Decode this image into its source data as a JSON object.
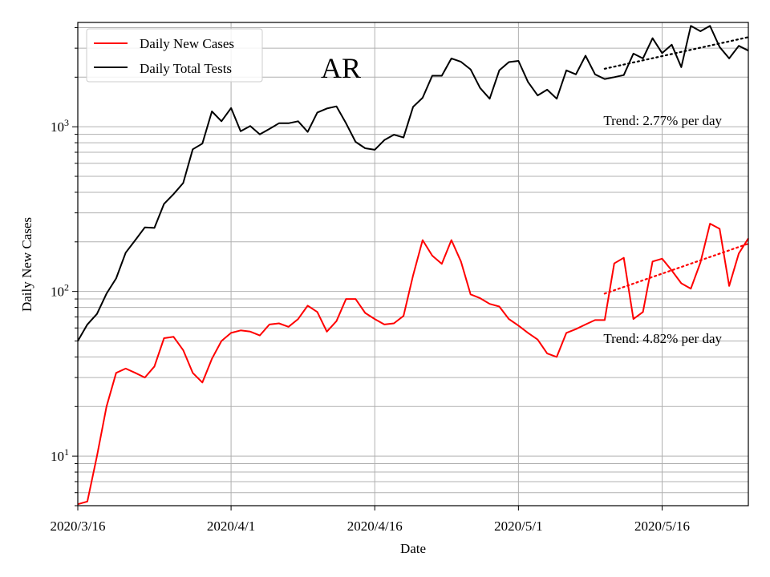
{
  "chart_data": {
    "type": "line",
    "state_label": "AR",
    "xlabel": "Date",
    "ylabel": "Daily New Cases",
    "yscale": "log",
    "ylim": [
      5,
      4300
    ],
    "xlim": [
      "2020-03-16",
      "2020-05-25"
    ],
    "grid": "both (major and minor on y)",
    "legend_position": "top-left",
    "x_ticks": [
      {
        "date": "2020-03-16",
        "label": "2020/3/16"
      },
      {
        "date": "2020-04-01",
        "label": "2020/4/1"
      },
      {
        "date": "2020-04-16",
        "label": "2020/4/16"
      },
      {
        "date": "2020-05-01",
        "label": "2020/5/1"
      },
      {
        "date": "2020-05-16",
        "label": "2020/5/16"
      }
    ],
    "y_ticks": [
      {
        "value": 10,
        "base": "10",
        "exp": "1"
      },
      {
        "value": 100,
        "base": "10",
        "exp": "2"
      },
      {
        "value": 1000,
        "base": "10",
        "exp": "3"
      }
    ],
    "start_date": "2020-03-16",
    "series": [
      {
        "name": "Daily New Cases",
        "color": "#ff0000",
        "values": [
          5.1,
          5.3,
          10,
          20,
          32,
          34,
          32,
          30,
          35,
          52,
          53,
          44,
          32,
          28,
          39,
          50,
          56,
          58,
          57,
          54,
          63,
          64,
          61,
          68,
          82,
          75,
          57,
          66,
          90,
          90,
          74,
          68,
          63,
          64,
          71,
          125,
          205,
          165,
          147,
          205,
          152,
          96,
          91,
          84,
          81,
          68,
          62,
          56,
          51,
          42,
          40,
          56,
          59,
          63,
          67,
          67,
          148,
          160,
          68,
          75,
          152,
          158,
          134,
          112,
          104,
          150,
          258,
          240,
          108,
          170,
          210
        ]
      },
      {
        "name": "Daily Total Tests",
        "color": "#000000",
        "values": [
          50,
          63,
          73,
          97,
          120,
          172,
          205,
          245,
          243,
          340,
          390,
          455,
          730,
          790,
          1240,
          1080,
          1300,
          940,
          1010,
          900,
          970,
          1050,
          1050,
          1080,
          930,
          1220,
          1290,
          1330,
          1050,
          810,
          740,
          725,
          830,
          895,
          860,
          1320,
          1500,
          2040,
          2040,
          2600,
          2480,
          2230,
          1720,
          1480,
          2200,
          2470,
          2510,
          1870,
          1550,
          1680,
          1480,
          2200,
          2080,
          2700,
          2080,
          1950,
          2000,
          2060,
          2780,
          2600,
          3450,
          2800,
          3150,
          2300,
          4100,
          3800,
          4100,
          3050,
          2600,
          3100,
          2900
        ]
      }
    ],
    "trends": [
      {
        "series": "Daily Total Tests",
        "label": "Trend: 2.77% per day",
        "start_index": 55,
        "end_index": 70,
        "start_value": 2250,
        "end_value": 3500
      },
      {
        "series": "Daily New Cases",
        "label": "Trend: 4.82% per day",
        "start_index": 55,
        "end_index": 70,
        "start_value": 97,
        "end_value": 195
      }
    ],
    "colors": {
      "cases": "#ff0000",
      "tests": "#000000",
      "grid": "#b0b0b0",
      "legend_border": "#cccccc"
    }
  }
}
